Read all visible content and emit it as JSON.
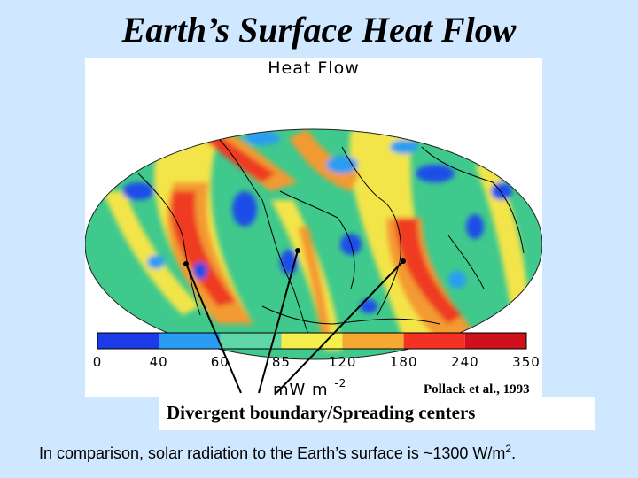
{
  "slide": {
    "title": "Earth’s Surface Heat Flow",
    "callout": "Divergent boundary/Spreading centers",
    "footnote_text": "In comparison, solar radiation to the Earth’s surface is ~1300 W/m",
    "footnote_exponent": "2",
    "footnote_end": "."
  },
  "figure": {
    "map_title": "Heat Flow",
    "unit": "mW m",
    "unit_exponent": "-2",
    "citation": "Pollack et al., 1993",
    "colorbar_ticks": [
      "0",
      "40",
      "60",
      "85",
      "120",
      "180",
      "240",
      "350"
    ],
    "colorbar_colors": [
      "#1d3ae8",
      "#2a9cf2",
      "#5fd6a5",
      "#f6ee4c",
      "#f6a832",
      "#f43224",
      "#d0101c"
    ]
  },
  "colors": {
    "background": "#cfe8ff",
    "arrow": "#000000"
  }
}
